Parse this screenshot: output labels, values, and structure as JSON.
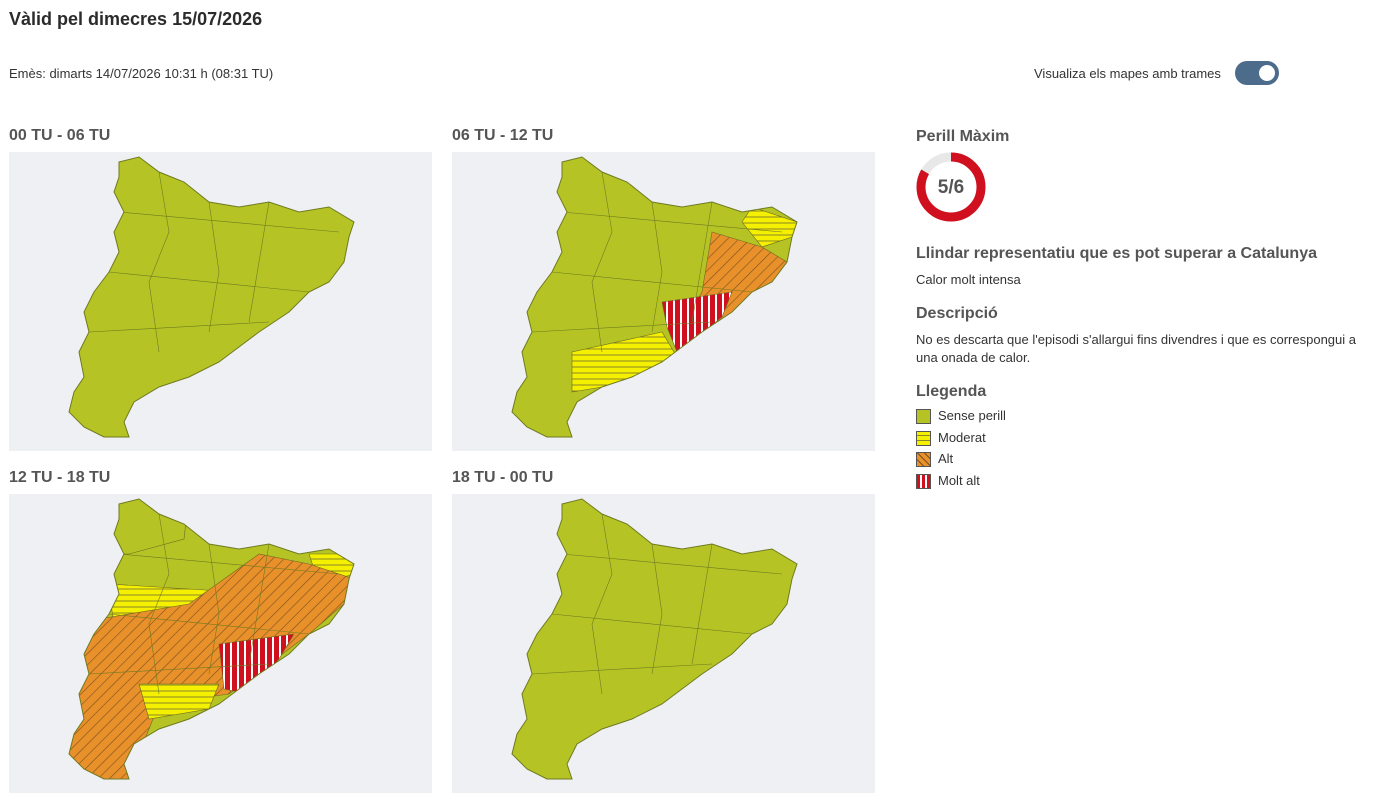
{
  "header": {
    "title": "Vàlid pel dimecres 15/07/2026",
    "issued": "Emès: dimarts 14/07/2026 10:31 h (08:31 TU)",
    "toggle_label": "Visualiza els mapes amb trames"
  },
  "maps": [
    "00 TU - 06 TU",
    "06 TU - 12 TU",
    "12 TU - 18 TU",
    "18 TU - 00 TU"
  ],
  "sidebar": {
    "max_danger_title": "Perill Màxim",
    "max_danger": {
      "label": "5/6",
      "value": 5,
      "max": 6
    },
    "threshold_title": "Llindar representatiu que es pot superar a Catalunya",
    "threshold": "Calor molt intensa",
    "description_title": "Descripció",
    "description": "No es descarta que l'episodi s'allargui fins divendres i que es correspongui a una onada de calor.",
    "legend_title": "Llegenda",
    "legend": [
      "Sense perill",
      "Moderat",
      "Alt",
      "Molt alt"
    ]
  }
}
